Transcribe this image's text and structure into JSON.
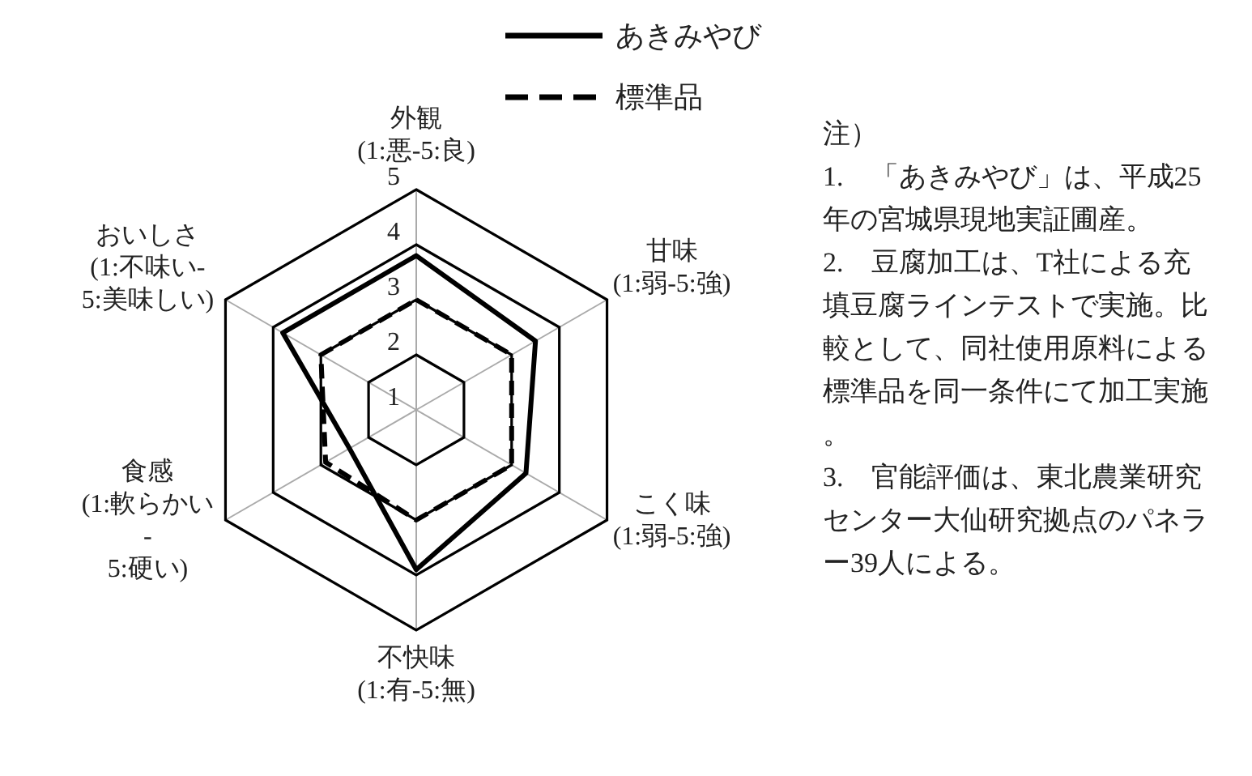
{
  "chart_data": {
    "type": "radar",
    "categories": [
      "外観\n(1:悪-5:良)",
      "甘味\n(1:弱-5:強)",
      "こく味\n(1:弱-5:強)",
      "不快味\n(1:有-5:無)",
      "食感\n(1:軟らかい\n-\n5:硬い)",
      "おいしさ\n(1:不味い-\n5:美味しい)"
    ],
    "series": [
      {
        "name": "あきみやび",
        "color": "#000000",
        "line_style": "solid",
        "values": [
          3.8,
          3.5,
          3.3,
          3.9,
          2.4,
          3.8
        ]
      },
      {
        "name": "標準品",
        "color": "#000000",
        "line_style": "dashed",
        "values": [
          3.0,
          3.0,
          3.0,
          3.0,
          2.9,
          3.0
        ]
      }
    ],
    "ylim": [
      1,
      5
    ],
    "yticks": [
      1,
      2,
      3,
      4,
      5
    ],
    "grid": true,
    "legend": "top",
    "marker": "none",
    "annotations": [
      "注）",
      "1.　「あきみやび」は、平成25年の宮城県現地実証圃産。",
      "2.　豆腐加工は、T社による充填豆腐ラインテストで実施。比較として、同社使用原料による標準品を同一条件にて加工実施。",
      "3.　官能評価は、東北農業研究センター大仙研究拠点のパネラー39人による。"
    ]
  }
}
